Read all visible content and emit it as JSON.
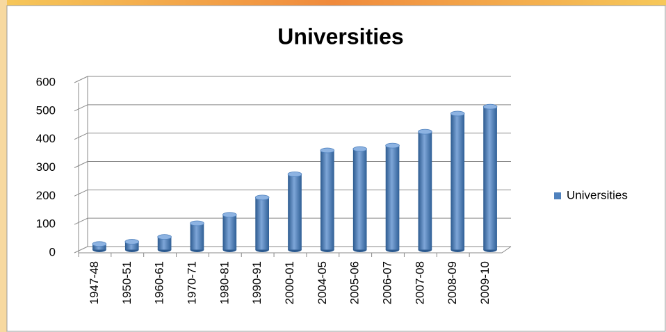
{
  "chart_data": {
    "type": "bar",
    "title": "Universities",
    "categories": [
      "1947-48",
      "1950-51",
      "1960-61",
      "1970-71",
      "1980-81",
      "1990-91",
      "2000-01",
      "2004-05",
      "2005-06",
      "2006-07",
      "2007-08",
      "2008-09",
      "2009-10"
    ],
    "series": [
      {
        "name": "Universities",
        "color": "#4f81bd",
        "values": [
          20,
          28,
          45,
          93,
          123,
          184,
          266,
          350,
          355,
          367,
          416,
          480,
          504
        ]
      }
    ],
    "ylim": [
      0,
      600
    ],
    "yticks": [
      0,
      100,
      200,
      300,
      400,
      500,
      600
    ],
    "grid": true,
    "legend": "right"
  }
}
